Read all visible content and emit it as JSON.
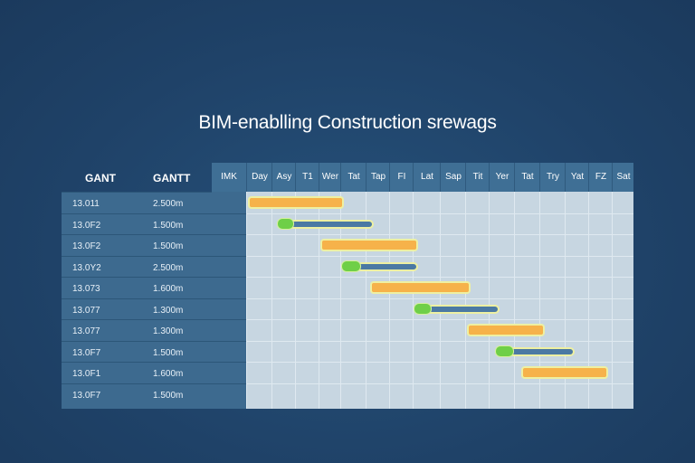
{
  "title": "BIM-enablling Construction srewags",
  "left_table": {
    "headers": [
      "GANT",
      "GANTT"
    ],
    "rows": [
      {
        "id": "13.011",
        "value": "2.500m"
      },
      {
        "id": "13.0F2",
        "value": "1.500m"
      },
      {
        "id": "13.0F2",
        "value": "1.500m"
      },
      {
        "id": "13.0Y2",
        "value": "2.500m"
      },
      {
        "id": "13.073",
        "value": "1.600m"
      },
      {
        "id": "13.077",
        "value": "1.300m"
      },
      {
        "id": "13.077",
        "value": "1.300m"
      },
      {
        "id": "13.0F7",
        "value": "1.500m"
      },
      {
        "id": "13.0F1",
        "value": "1.600m"
      },
      {
        "id": "13.0F7",
        "value": "1.500m"
      }
    ]
  },
  "timeline": {
    "first_header": "IMK",
    "columns": [
      "Day",
      "Asy",
      "T1",
      "Wer",
      "Tat",
      "Tap",
      "FI",
      "Lat",
      "Sap",
      "Tit",
      "Yer",
      "Tat",
      "Try",
      "Yat",
      "FZ",
      "Sat"
    ]
  },
  "tasks": [
    {
      "type": "bar",
      "start": 0,
      "end": 3.9
    },
    {
      "type": "progress",
      "start": 1.2,
      "end": 5.1,
      "progress": 0.17
    },
    {
      "type": "bar",
      "start": 3.0,
      "end": 7.0
    },
    {
      "type": "progress",
      "start": 4.0,
      "end": 7.0,
      "progress": 0.25
    },
    {
      "type": "bar",
      "start": 5.1,
      "end": 9.0
    },
    {
      "type": "progress",
      "start": 7.0,
      "end": 10.2,
      "progress": 0.2
    },
    {
      "type": "bar",
      "start": 9.0,
      "end": 12.0
    },
    {
      "type": "progress",
      "start": 10.2,
      "end": 13.2,
      "progress": 0.23
    },
    {
      "type": "bar",
      "start": 11.2,
      "end": 14.6
    }
  ],
  "colors": {
    "bar": "#f6b24a",
    "progress_knob": "#6fcf48",
    "track": "#4b79a3"
  }
}
